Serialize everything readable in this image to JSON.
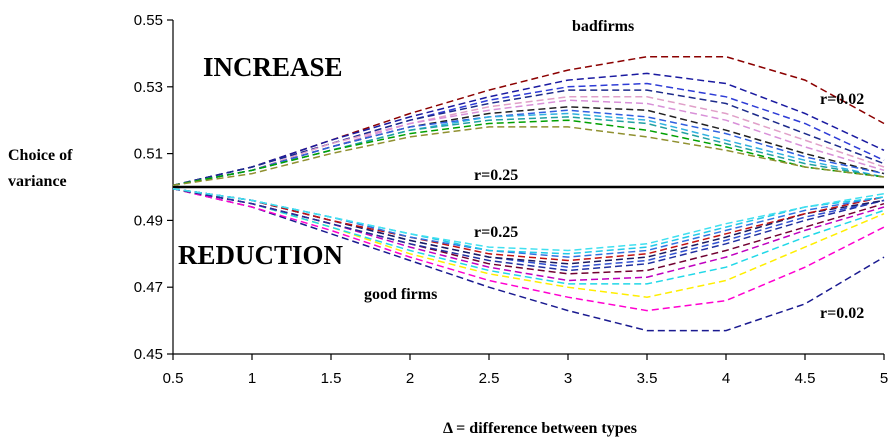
{
  "chart_data": {
    "type": "line",
    "xlabel": "Δ = difference between types",
    "ylabel_line1": "Choice of",
    "ylabel_line2": "variance",
    "x": [
      0.5,
      1,
      1.5,
      2,
      2.5,
      3,
      3.5,
      4,
      4.5,
      5
    ],
    "x_ticks": [
      "0.5",
      "1",
      "1.5",
      "2",
      "2.5",
      "3",
      "3.5",
      "4",
      "4.5",
      "5"
    ],
    "y_ticks": [
      "0.45",
      "0.47",
      "0.49",
      "0.51",
      "0.53",
      "0.55"
    ],
    "xlim": [
      0.5,
      5
    ],
    "ylim": [
      0.45,
      0.55
    ],
    "reference_line": 0.5,
    "annotations": {
      "increase": "INCREASE",
      "reduction": "REDUCTION",
      "bad_firms": "badfirms",
      "good_firms": "good firms",
      "r_top_high": "r=0.02",
      "r_top_low": "r=0.25",
      "r_bottom_low": "r=0.25",
      "r_bottom_high": "r=0.02"
    },
    "series": [
      {
        "group": "bad",
        "color": "#8b0000",
        "values": [
          0.5005,
          0.506,
          0.514,
          0.522,
          0.529,
          0.535,
          0.539,
          0.539,
          0.532,
          0.519
        ]
      },
      {
        "group": "bad",
        "color": "#1a1aa0",
        "values": [
          0.5005,
          0.506,
          0.514,
          0.521,
          0.527,
          0.532,
          0.534,
          0.531,
          0.522,
          0.511
        ]
      },
      {
        "group": "bad",
        "color": "#2e3cd6",
        "values": [
          0.5005,
          0.506,
          0.513,
          0.52,
          0.526,
          0.53,
          0.531,
          0.527,
          0.519,
          0.508
        ]
      },
      {
        "group": "bad",
        "color": "#1c2a8a",
        "values": [
          0.5005,
          0.506,
          0.513,
          0.52,
          0.525,
          0.529,
          0.529,
          0.525,
          0.516,
          0.507
        ]
      },
      {
        "group": "bad",
        "color": "#e0a0c8",
        "values": [
          0.5005,
          0.505,
          0.513,
          0.519,
          0.524,
          0.527,
          0.527,
          0.522,
          0.514,
          0.506
        ]
      },
      {
        "group": "bad",
        "color": "#d890d8",
        "values": [
          0.5005,
          0.505,
          0.512,
          0.519,
          0.523,
          0.526,
          0.525,
          0.52,
          0.512,
          0.505
        ]
      },
      {
        "group": "bad",
        "color": "#202020",
        "values": [
          0.5005,
          0.505,
          0.512,
          0.518,
          0.522,
          0.524,
          0.523,
          0.517,
          0.51,
          0.504
        ]
      },
      {
        "group": "bad",
        "color": "#3060e0",
        "values": [
          0.5005,
          0.505,
          0.512,
          0.518,
          0.521,
          0.523,
          0.521,
          0.516,
          0.509,
          0.504
        ]
      },
      {
        "group": "bad",
        "color": "#30b0e0",
        "values": [
          0.5005,
          0.505,
          0.511,
          0.517,
          0.521,
          0.522,
          0.52,
          0.514,
          0.508,
          0.503
        ]
      },
      {
        "group": "bad",
        "color": "#20a0a0",
        "values": [
          0.5005,
          0.505,
          0.511,
          0.517,
          0.52,
          0.521,
          0.519,
          0.513,
          0.507,
          0.503
        ]
      },
      {
        "group": "bad",
        "color": "#00a000",
        "values": [
          0.5005,
          0.505,
          0.511,
          0.516,
          0.519,
          0.52,
          0.517,
          0.512,
          0.506,
          0.503
        ]
      },
      {
        "group": "bad",
        "color": "#909030",
        "values": [
          0.5005,
          0.504,
          0.51,
          0.515,
          0.518,
          0.518,
          0.515,
          0.511,
          0.506,
          0.503
        ]
      },
      {
        "group": "good",
        "color": "#1a1a90",
        "values": [
          0.4995,
          0.494,
          0.486,
          0.478,
          0.47,
          0.463,
          0.457,
          0.457,
          0.465,
          0.479
        ]
      },
      {
        "group": "good",
        "color": "#ff00d0",
        "values": [
          0.4995,
          0.494,
          0.487,
          0.479,
          0.472,
          0.467,
          0.463,
          0.466,
          0.476,
          0.488
        ]
      },
      {
        "group": "good",
        "color": "#ffee00",
        "values": [
          0.4995,
          0.495,
          0.488,
          0.48,
          0.474,
          0.47,
          0.467,
          0.472,
          0.482,
          0.492
        ]
      },
      {
        "group": "good",
        "color": "#20d8e8",
        "values": [
          0.4995,
          0.495,
          0.488,
          0.481,
          0.475,
          0.471,
          0.471,
          0.476,
          0.485,
          0.493
        ]
      },
      {
        "group": "good",
        "color": "#c000c0",
        "values": [
          0.4995,
          0.495,
          0.489,
          0.482,
          0.476,
          0.472,
          0.473,
          0.479,
          0.487,
          0.494
        ]
      },
      {
        "group": "good",
        "color": "#700030",
        "values": [
          0.4995,
          0.495,
          0.489,
          0.483,
          0.477,
          0.474,
          0.475,
          0.481,
          0.488,
          0.495
        ]
      },
      {
        "group": "good",
        "color": "#2030a0",
        "values": [
          0.4995,
          0.495,
          0.489,
          0.483,
          0.478,
          0.475,
          0.477,
          0.483,
          0.49,
          0.496
        ]
      },
      {
        "group": "good",
        "color": "#3050d0",
        "values": [
          0.4995,
          0.496,
          0.49,
          0.484,
          0.479,
          0.476,
          0.478,
          0.484,
          0.491,
          0.496
        ]
      },
      {
        "group": "good",
        "color": "#1a1a60",
        "values": [
          0.4995,
          0.496,
          0.49,
          0.484,
          0.479,
          0.477,
          0.479,
          0.485,
          0.492,
          0.496
        ]
      },
      {
        "group": "good",
        "color": "#c01010",
        "values": [
          0.4995,
          0.496,
          0.49,
          0.485,
          0.48,
          0.478,
          0.48,
          0.486,
          0.492,
          0.497
        ]
      },
      {
        "group": "good",
        "color": "#3070e0",
        "values": [
          0.4995,
          0.496,
          0.491,
          0.485,
          0.481,
          0.479,
          0.481,
          0.487,
          0.493,
          0.497
        ]
      },
      {
        "group": "good",
        "color": "#20c8e8",
        "values": [
          0.4995,
          0.496,
          0.491,
          0.486,
          0.481,
          0.48,
          0.482,
          0.488,
          0.494,
          0.497
        ]
      },
      {
        "group": "good",
        "color": "#40e0f0",
        "values": [
          0.4995,
          0.496,
          0.491,
          0.486,
          0.482,
          0.481,
          0.483,
          0.489,
          0.494,
          0.498
        ]
      }
    ]
  }
}
